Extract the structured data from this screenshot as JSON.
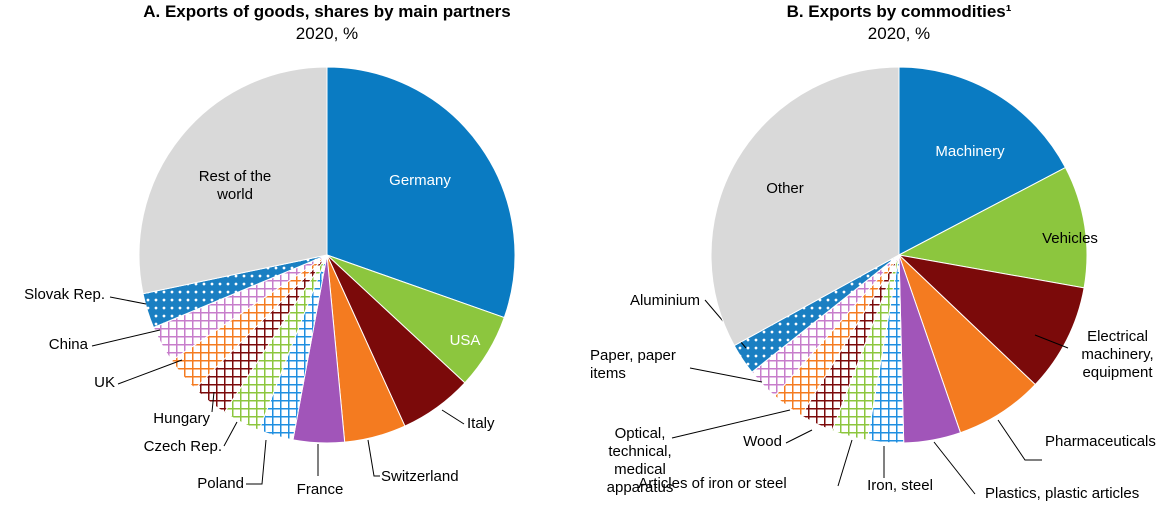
{
  "chart_data": [
    {
      "type": "pie",
      "title": "A. Exports of goods, shares by main partners",
      "subtitle": "2020, %",
      "categories": [
        "Germany",
        "USA",
        "Italy",
        "Switzerland",
        "France",
        "Poland",
        "Czech Rep.",
        "Hungary",
        "UK",
        "China",
        "Slovak Rep.",
        "Rest of the world"
      ],
      "values": [
        30.4,
        6.5,
        6.3,
        5.3,
        4.4,
        3.0,
        3.3,
        3.2,
        3.1,
        3.2,
        3.0,
        28.3
      ],
      "colors": [
        "#0a7bc2",
        "#8cc63e",
        "#7b0a0a",
        "#f47b20",
        "#a155b9",
        "#1f8fe0",
        "#8cc63e",
        "#7b0a0a",
        "#f47b20",
        "#c77dcb",
        "#1a7fc2",
        "#d9d9d9"
      ],
      "patterns": [
        "solid",
        "solid",
        "solid",
        "solid",
        "solid",
        "cross",
        "cross",
        "cross",
        "cross",
        "cross",
        "dots",
        "solid"
      ]
    },
    {
      "type": "pie",
      "title": "B. Exports by commodities¹",
      "subtitle": "2020, %",
      "categories": [
        "Machinery",
        "Vehicles",
        "Electrical machinery, equipment",
        "Pharmaceuticals",
        "Plastics, plastic articles",
        "Iron, steel",
        "Articles of iron or steel",
        "Wood",
        "Optical, technical, medical apparatus",
        "Paper, paper items",
        "Aluminium",
        "Other"
      ],
      "values": [
        17.3,
        10.5,
        9.3,
        7.6,
        4.9,
        3.1,
        3.1,
        2.9,
        2.8,
        2.8,
        2.7,
        33.0
      ],
      "colors": [
        "#0a7bc2",
        "#8cc63e",
        "#7b0a0a",
        "#f47b20",
        "#a155b9",
        "#1f8fe0",
        "#8cc63e",
        "#7b0a0a",
        "#f47b20",
        "#c77dcb",
        "#1a7fc2",
        "#d9d9d9"
      ],
      "patterns": [
        "solid",
        "solid",
        "solid",
        "solid",
        "solid",
        "cross",
        "cross",
        "cross",
        "cross",
        "cross",
        "dots",
        "solid"
      ]
    }
  ]
}
